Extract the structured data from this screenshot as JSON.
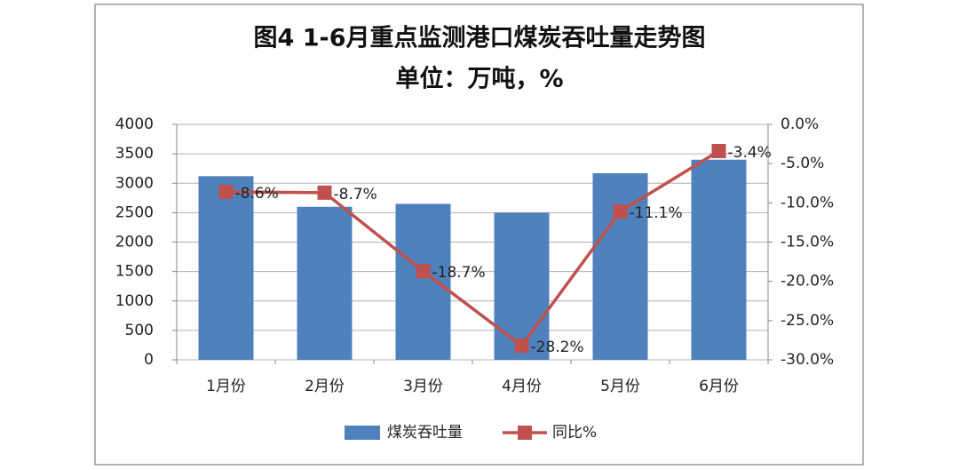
{
  "chart_data": {
    "type": "combo",
    "title": "图4  1-6月重点监测港口煤炭吞吐量走势图",
    "subtitle": "单位：万吨，%",
    "categories": [
      "1月份",
      "2月份",
      "3月份",
      "4月份",
      "5月份",
      "6月份"
    ],
    "series": [
      {
        "name": "煤炭吞吐量",
        "type": "bar",
        "color": "#4f81bd",
        "values": [
          3120,
          2600,
          2650,
          2500,
          3170,
          3400
        ]
      },
      {
        "name": "同比%",
        "type": "line",
        "axis": "y2",
        "color": "#c0504d",
        "values": [
          -8.6,
          -8.7,
          -18.7,
          -28.2,
          -11.1,
          -3.4
        ],
        "value_labels": [
          "-8.6%",
          "-8.7%",
          "-18.7%",
          "-28.2%",
          "-11.1%",
          "-3.4%"
        ]
      }
    ],
    "ylim": [
      0,
      4000
    ],
    "yticks": [
      0,
      500,
      1000,
      1500,
      2000,
      2500,
      3000,
      3500,
      4000
    ],
    "y2lim": [
      -30,
      0
    ],
    "y2ticks": [
      {
        "value": 0,
        "label": "0.0%"
      },
      {
        "value": -5,
        "label": "-5.0%"
      },
      {
        "value": -10,
        "label": "-10.0%"
      },
      {
        "value": -15,
        "label": "-15.0%"
      },
      {
        "value": -20,
        "label": "-20.0%"
      },
      {
        "value": -25,
        "label": "-25.0%"
      },
      {
        "value": -30,
        "label": "-30.0%"
      }
    ],
    "grid": true,
    "legend": "bottom"
  }
}
